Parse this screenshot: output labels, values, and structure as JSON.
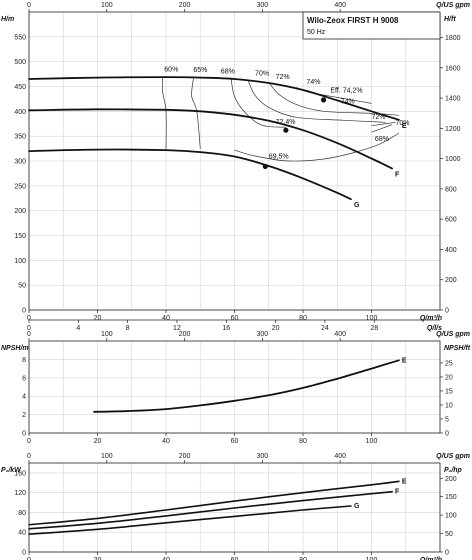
{
  "header": {
    "title": "Wilo-Zeox FIRST H 9008",
    "subtitle": "50 Hz"
  },
  "chart_data": [
    {
      "type": "line",
      "name_key": "head",
      "xlim": [
        0,
        120
      ],
      "ylim": [
        0,
        600
      ],
      "x_ticks": [
        0,
        20,
        40,
        60,
        80,
        100
      ],
      "y_ticks": [
        0,
        50,
        100,
        150,
        200,
        250,
        300,
        350,
        400,
        450,
        500,
        550
      ],
      "xlabel": "Q/m³/h",
      "ylabel": "H/m",
      "top_axis": {
        "label": "Q/US gpm",
        "ticks": [
          0,
          100,
          200,
          300,
          400
        ],
        "factor": 4.4029
      },
      "right_axis": {
        "label": "H/ft",
        "ticks": [
          0,
          200,
          400,
          600,
          800,
          1000,
          1200,
          1400,
          1600,
          1800
        ],
        "factor": 3.28084
      },
      "bottom2_axis": {
        "label": "Q/l/s",
        "ticks": [
          0,
          4,
          8,
          12,
          16,
          20,
          24,
          28
        ],
        "factor": 3.6
      },
      "series": [
        {
          "name": "E",
          "x": [
            0,
            20,
            40,
            50,
            60,
            70,
            80,
            90,
            100,
            108
          ],
          "y": [
            465,
            468,
            469,
            468,
            465,
            457,
            443,
            422,
            400,
            383
          ]
        },
        {
          "name": "F",
          "x": [
            0,
            20,
            40,
            50,
            60,
            70,
            80,
            90,
            100,
            106
          ],
          "y": [
            402,
            404,
            403,
            400,
            393,
            381,
            362,
            336,
            305,
            285
          ]
        },
        {
          "name": "G",
          "x": [
            0,
            20,
            40,
            50,
            60,
            70,
            80,
            90,
            94
          ],
          "y": [
            320,
            323,
            322,
            318,
            309,
            290,
            265,
            236,
            223
          ]
        }
      ],
      "efficiency_labels": [
        "60%",
        "65%",
        "68%",
        "70%",
        "72%",
        "74%",
        "Eff. 74,2%",
        "74%",
        "72%",
        "70%",
        "72,4%",
        "68%",
        "69,5%"
      ],
      "duty_points": [
        {
          "series": "E",
          "x": 86,
          "y": 423,
          "label": "Eff. 74,2%"
        },
        {
          "series": "F",
          "x": 75,
          "y": 362,
          "label": "72,4%"
        },
        {
          "series": "G",
          "x": 69,
          "y": 289,
          "label": "69,5%"
        }
      ]
    },
    {
      "type": "line",
      "name_key": "npsh",
      "xlim": [
        0,
        120
      ],
      "ylim": [
        0,
        10
      ],
      "x_ticks": [
        0,
        20,
        40,
        60,
        80,
        100
      ],
      "y_ticks": [
        0,
        2,
        4,
        6,
        8
      ],
      "xlabel": "",
      "ylabel": "NPSH/m",
      "top_axis": {
        "label": "Q/US gpm",
        "ticks": [
          0,
          100,
          200,
          300,
          400
        ],
        "factor": 4.4029
      },
      "right_axis": {
        "label": "NPSH/ft",
        "ticks": [
          0,
          5,
          10,
          15,
          20,
          25
        ],
        "factor": 3.28084
      },
      "series": [
        {
          "name": "E",
          "x": [
            19,
            30,
            40,
            50,
            60,
            70,
            80,
            90,
            100,
            108
          ],
          "y": [
            2.3,
            2.4,
            2.6,
            3.0,
            3.5,
            4.1,
            4.9,
            5.9,
            7.0,
            7.9
          ]
        }
      ]
    },
    {
      "type": "line",
      "name_key": "power",
      "xlim": [
        0,
        120
      ],
      "ylim": [
        0,
        180
      ],
      "x_ticks": [
        0,
        20,
        40,
        60,
        80,
        100
      ],
      "y_ticks": [
        0,
        40,
        80,
        120,
        160
      ],
      "xlabel": "Q/m³/h",
      "ylabel": "P₂/kW",
      "top_axis": {
        "label": "Q/US gpm",
        "ticks": [
          0,
          100,
          200,
          300,
          400
        ],
        "factor": 4.4029
      },
      "right_axis": {
        "label": "P₂/hp",
        "ticks": [
          0,
          50,
          100,
          150,
          200
        ],
        "factor": 1.341
      },
      "series": [
        {
          "name": "E",
          "x": [
            0,
            20,
            40,
            60,
            80,
            100,
            108
          ],
          "y": [
            55,
            68,
            85,
            103,
            120,
            136,
            143
          ]
        },
        {
          "name": "F",
          "x": [
            0,
            20,
            40,
            60,
            80,
            100,
            106
          ],
          "y": [
            47,
            58,
            73,
            89,
            104,
            118,
            122
          ]
        },
        {
          "name": "G",
          "x": [
            0,
            20,
            40,
            60,
            80,
            94
          ],
          "y": [
            36,
            46,
            59,
            72,
            85,
            93
          ]
        }
      ]
    }
  ]
}
